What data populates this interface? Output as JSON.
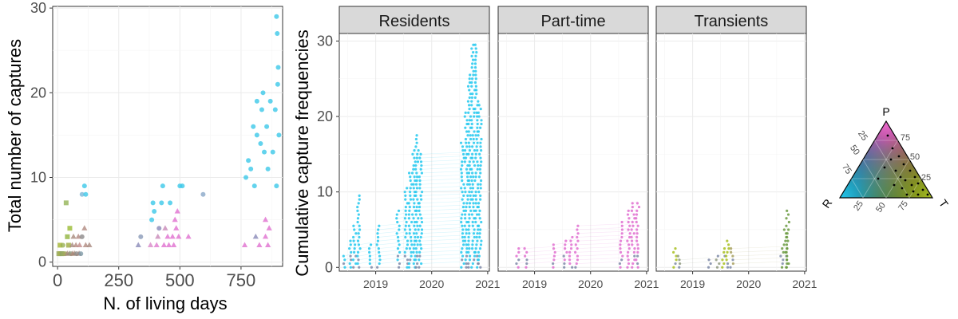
{
  "chart_data": [
    {
      "type": "scatter",
      "xlabel": "N. of living days",
      "ylabel": "Total number of captures",
      "xlim": [
        -20,
        920
      ],
      "ylim": [
        -0.5,
        30.2
      ],
      "xticks": [
        "0",
        "250",
        "500",
        "750"
      ],
      "xtick_values": [
        0,
        250,
        500,
        750
      ],
      "yticks": [
        "0",
        "10",
        "20",
        "30"
      ],
      "ytick_values": [
        0,
        10,
        20,
        30
      ],
      "grid": true,
      "points": [
        {
          "x": 5,
          "y": 1,
          "shape": "square",
          "color": "#98a85a"
        },
        {
          "x": 12,
          "y": 1,
          "shape": "square",
          "color": "#a5b04a"
        },
        {
          "x": 18,
          "y": 1,
          "shape": "square",
          "color": "#8fa567"
        },
        {
          "x": 25,
          "y": 1,
          "shape": "circle",
          "color": "#9aaa5f"
        },
        {
          "x": 32,
          "y": 1,
          "shape": "circle",
          "color": "#a4a85c"
        },
        {
          "x": 40,
          "y": 1,
          "shape": "triangle",
          "color": "#a58a7d"
        },
        {
          "x": 48,
          "y": 1,
          "shape": "triangle",
          "color": "#9c8a78"
        },
        {
          "x": 55,
          "y": 1,
          "shape": "circle",
          "color": "#8f9a80"
        },
        {
          "x": 62,
          "y": 1,
          "shape": "triangle",
          "color": "#b08678"
        },
        {
          "x": 70,
          "y": 1,
          "shape": "triangle",
          "color": "#a08674"
        },
        {
          "x": 78,
          "y": 1,
          "shape": "circle",
          "color": "#8f8c8a"
        },
        {
          "x": 88,
          "y": 1,
          "shape": "triangle",
          "color": "#a0837a"
        },
        {
          "x": 95,
          "y": 1,
          "shape": "circle",
          "color": "#7e9aa8"
        },
        {
          "x": 10,
          "y": 2,
          "shape": "square",
          "color": "#a8b83c"
        },
        {
          "x": 22,
          "y": 2,
          "shape": "circle",
          "color": "#9ab255"
        },
        {
          "x": 45,
          "y": 2,
          "shape": "square",
          "color": "#a5b04a"
        },
        {
          "x": 60,
          "y": 2,
          "shape": "triangle",
          "color": "#a58a7d"
        },
        {
          "x": 75,
          "y": 2,
          "shape": "triangle",
          "color": "#b48a80"
        },
        {
          "x": 90,
          "y": 2,
          "shape": "triangle",
          "color": "#c08a88"
        },
        {
          "x": 115,
          "y": 2,
          "shape": "triangle",
          "color": "#b08a80"
        },
        {
          "x": 130,
          "y": 2,
          "shape": "triangle",
          "color": "#a8887e"
        },
        {
          "x": 40,
          "y": 3,
          "shape": "square",
          "color": "#98b84a"
        },
        {
          "x": 65,
          "y": 3,
          "shape": "triangle",
          "color": "#a88a7c"
        },
        {
          "x": 85,
          "y": 3,
          "shape": "triangle",
          "color": "#b08880"
        },
        {
          "x": 100,
          "y": 3,
          "shape": "circle",
          "color": "#8c8a8a"
        },
        {
          "x": 50,
          "y": 4,
          "shape": "square",
          "color": "#a0c040"
        },
        {
          "x": 110,
          "y": 4,
          "shape": "triangle",
          "color": "#b08a80"
        },
        {
          "x": 35,
          "y": 7,
          "shape": "square",
          "color": "#9ab860"
        },
        {
          "x": 100,
          "y": 8,
          "shape": "circle",
          "color": "#7ab8d8"
        },
        {
          "x": 115,
          "y": 8,
          "shape": "circle",
          "color": "#3cc8e8"
        },
        {
          "x": 110,
          "y": 9,
          "shape": "circle",
          "color": "#3cc8e8"
        },
        {
          "x": 330,
          "y": 2,
          "shape": "triangle",
          "color": "#8a8ab8"
        },
        {
          "x": 340,
          "y": 3,
          "shape": "circle",
          "color": "#8a9ab8"
        },
        {
          "x": 380,
          "y": 2,
          "shape": "triangle",
          "color": "#d888c8"
        },
        {
          "x": 385,
          "y": 5,
          "shape": "circle",
          "color": "#3cc8e8"
        },
        {
          "x": 395,
          "y": 6,
          "shape": "circle",
          "color": "#3cc8e8"
        },
        {
          "x": 390,
          "y": 7,
          "shape": "circle",
          "color": "#3cc8e8"
        },
        {
          "x": 405,
          "y": 2,
          "shape": "triangle",
          "color": "#e07ad0"
        },
        {
          "x": 410,
          "y": 3,
          "shape": "triangle",
          "color": "#c888b8"
        },
        {
          "x": 415,
          "y": 4,
          "shape": "circle",
          "color": "#8a8ab8"
        },
        {
          "x": 425,
          "y": 7,
          "shape": "circle",
          "color": "#3cc8e8"
        },
        {
          "x": 430,
          "y": 9,
          "shape": "circle",
          "color": "#3cc8e8"
        },
        {
          "x": 435,
          "y": 2,
          "shape": "triangle",
          "color": "#e070d0"
        },
        {
          "x": 440,
          "y": 4,
          "shape": "triangle",
          "color": "#c888b8"
        },
        {
          "x": 450,
          "y": 3,
          "shape": "triangle",
          "color": "#e070d0"
        },
        {
          "x": 455,
          "y": 2,
          "shape": "triangle",
          "color": "#e070d0"
        },
        {
          "x": 460,
          "y": 7,
          "shape": "circle",
          "color": "#3cc8e8"
        },
        {
          "x": 470,
          "y": 3,
          "shape": "triangle",
          "color": "#e070d0"
        },
        {
          "x": 475,
          "y": 2,
          "shape": "triangle",
          "color": "#e070d0"
        },
        {
          "x": 480,
          "y": 5,
          "shape": "triangle",
          "color": "#e070d0"
        },
        {
          "x": 485,
          "y": 4,
          "shape": "triangle",
          "color": "#e070d0"
        },
        {
          "x": 490,
          "y": 6,
          "shape": "triangle",
          "color": "#e070d0"
        },
        {
          "x": 495,
          "y": 3,
          "shape": "triangle",
          "color": "#e070d0"
        },
        {
          "x": 500,
          "y": 9,
          "shape": "circle",
          "color": "#3cc8e8"
        },
        {
          "x": 510,
          "y": 9,
          "shape": "circle",
          "color": "#3cc8e8"
        },
        {
          "x": 535,
          "y": 3,
          "shape": "triangle",
          "color": "#e070d0"
        },
        {
          "x": 595,
          "y": 8,
          "shape": "circle",
          "color": "#8aa8c8"
        },
        {
          "x": 765,
          "y": 2,
          "shape": "triangle",
          "color": "#e070d0"
        },
        {
          "x": 770,
          "y": 10,
          "shape": "circle",
          "color": "#3cc8e8"
        },
        {
          "x": 780,
          "y": 12,
          "shape": "circle",
          "color": "#3cc8e8"
        },
        {
          "x": 790,
          "y": 11,
          "shape": "circle",
          "color": "#3cc8e8"
        },
        {
          "x": 800,
          "y": 16,
          "shape": "circle",
          "color": "#3cc8e8"
        },
        {
          "x": 805,
          "y": 9,
          "shape": "circle",
          "color": "#3cc8e8"
        },
        {
          "x": 810,
          "y": 3,
          "shape": "triangle",
          "color": "#8a8ab8"
        },
        {
          "x": 815,
          "y": 19,
          "shape": "circle",
          "color": "#3cc8e8"
        },
        {
          "x": 815,
          "y": 15,
          "shape": "circle",
          "color": "#3cc8e8"
        },
        {
          "x": 825,
          "y": 2,
          "shape": "triangle",
          "color": "#e070d0"
        },
        {
          "x": 830,
          "y": 14,
          "shape": "circle",
          "color": "#3cc8e8"
        },
        {
          "x": 835,
          "y": 18,
          "shape": "circle",
          "color": "#3cc8e8"
        },
        {
          "x": 840,
          "y": 20,
          "shape": "circle",
          "color": "#3cc8e8"
        },
        {
          "x": 845,
          "y": 13,
          "shape": "circle",
          "color": "#3cc8e8"
        },
        {
          "x": 850,
          "y": 3,
          "shape": "triangle",
          "color": "#e070d0"
        },
        {
          "x": 850,
          "y": 5,
          "shape": "triangle",
          "color": "#e070d0"
        },
        {
          "x": 855,
          "y": 16,
          "shape": "circle",
          "color": "#3cc8e8"
        },
        {
          "x": 860,
          "y": 2,
          "shape": "triangle",
          "color": "#e070d0"
        },
        {
          "x": 860,
          "y": 11,
          "shape": "circle",
          "color": "#3cc8e8"
        },
        {
          "x": 865,
          "y": 4,
          "shape": "triangle",
          "color": "#e070d0"
        },
        {
          "x": 870,
          "y": 19,
          "shape": "circle",
          "color": "#3cc8e8"
        },
        {
          "x": 880,
          "y": 13,
          "shape": "circle",
          "color": "#3cc8e8"
        },
        {
          "x": 890,
          "y": 18,
          "shape": "circle",
          "color": "#3cc8e8"
        },
        {
          "x": 895,
          "y": 29,
          "shape": "circle",
          "color": "#3cc8e8"
        },
        {
          "x": 898,
          "y": 27,
          "shape": "circle",
          "color": "#3cc8e8"
        },
        {
          "x": 900,
          "y": 21,
          "shape": "circle",
          "color": "#3cc8e8"
        },
        {
          "x": 902,
          "y": 23,
          "shape": "circle",
          "color": "#3cc8e8"
        },
        {
          "x": 905,
          "y": 15,
          "shape": "circle",
          "color": "#3cc8e8"
        },
        {
          "x": 895,
          "y": 9,
          "shape": "circle",
          "color": "#3cc8e8"
        }
      ]
    },
    {
      "type": "line",
      "ylabel": "Cumulative capture frequencies",
      "facets": [
        "Residents",
        "Part-time",
        "Transients"
      ],
      "xlim": [
        2018.35,
        2021.03
      ],
      "ylim": [
        -0.5,
        31
      ],
      "xticks": [
        "2019",
        "2020",
        "2021"
      ],
      "xtick_values": [
        2019,
        2020,
        2021
      ],
      "yticks": [
        "0",
        "10",
        "20",
        "30"
      ],
      "ytick_values": [
        0,
        10,
        20,
        30
      ],
      "grid": true,
      "capture_sessions": [
        {
          "facet": "Residents",
          "x": 2018.45,
          "max": 1.6,
          "color": "#22c8ee"
        },
        {
          "facet": "Residents",
          "x": 2018.55,
          "max": 3.5,
          "color": "#22c8ee"
        },
        {
          "facet": "Residents",
          "x": 2018.62,
          "max": 5.5,
          "color": "#22c8ee"
        },
        {
          "facet": "Residents",
          "x": 2018.7,
          "max": 9.5,
          "color": "#22c8ee"
        },
        {
          "facet": "Residents",
          "x": 2018.9,
          "max": 3.0,
          "color": "#22c8ee"
        },
        {
          "facet": "Residents",
          "x": 2019.05,
          "max": 5.5,
          "color": "#22c8ee"
        },
        {
          "facet": "Residents",
          "x": 2019.4,
          "max": 7.5,
          "color": "#22c8ee"
        },
        {
          "facet": "Residents",
          "x": 2019.55,
          "max": 10.5,
          "color": "#22c8ee"
        },
        {
          "facet": "Residents",
          "x": 2019.62,
          "max": 12.5,
          "color": "#22c8ee"
        },
        {
          "facet": "Residents",
          "x": 2019.68,
          "max": 15.5,
          "color": "#22c8ee"
        },
        {
          "facet": "Residents",
          "x": 2019.74,
          "max": 17.5,
          "color": "#22c8ee"
        },
        {
          "facet": "Residents",
          "x": 2019.8,
          "max": 15.0,
          "color": "#22c8ee"
        },
        {
          "facet": "Residents",
          "x": 2020.55,
          "max": 16.5,
          "color": "#22c8ee"
        },
        {
          "facet": "Residents",
          "x": 2020.62,
          "max": 20.5,
          "color": "#22c8ee"
        },
        {
          "facet": "Residents",
          "x": 2020.68,
          "max": 25.5,
          "color": "#22c8ee"
        },
        {
          "facet": "Residents",
          "x": 2020.74,
          "max": 29.5,
          "color": "#22c8ee"
        },
        {
          "facet": "Residents",
          "x": 2020.8,
          "max": 29.5,
          "color": "#22c8ee"
        },
        {
          "facet": "Residents",
          "x": 2020.86,
          "max": 21.5,
          "color": "#22c8ee"
        },
        {
          "facet": "Part-time",
          "x": 2018.7,
          "max": 2.5,
          "color": "#e070d0"
        },
        {
          "facet": "Part-time",
          "x": 2018.85,
          "max": 2.5,
          "color": "#e070d0"
        },
        {
          "facet": "Part-time",
          "x": 2019.35,
          "max": 3.0,
          "color": "#e070d0"
        },
        {
          "facet": "Part-time",
          "x": 2019.55,
          "max": 3.5,
          "color": "#e070d0"
        },
        {
          "facet": "Part-time",
          "x": 2019.65,
          "max": 4.0,
          "color": "#e070d0"
        },
        {
          "facet": "Part-time",
          "x": 2019.75,
          "max": 5.5,
          "color": "#e070d0"
        },
        {
          "facet": "Part-time",
          "x": 2020.55,
          "max": 6.0,
          "color": "#e070d0"
        },
        {
          "facet": "Part-time",
          "x": 2020.68,
          "max": 7.5,
          "color": "#e070d0"
        },
        {
          "facet": "Part-time",
          "x": 2020.76,
          "max": 8.5,
          "color": "#e070d0"
        },
        {
          "facet": "Part-time",
          "x": 2020.84,
          "max": 8.5,
          "color": "#e070d0"
        },
        {
          "facet": "Transients",
          "x": 2018.68,
          "max": 2.5,
          "color": "#a8c020"
        },
        {
          "facet": "Transients",
          "x": 2018.75,
          "max": 1.5,
          "color": "#8f9a80"
        },
        {
          "facet": "Transients",
          "x": 2019.3,
          "max": 1.0,
          "color": "#a88a7c"
        },
        {
          "facet": "Transients",
          "x": 2019.45,
          "max": 1.5,
          "color": "#8f9a80"
        },
        {
          "facet": "Transients",
          "x": 2019.55,
          "max": 2.5,
          "color": "#a8c020"
        },
        {
          "facet": "Transients",
          "x": 2019.62,
          "max": 3.5,
          "color": "#a8c020"
        },
        {
          "facet": "Transients",
          "x": 2019.7,
          "max": 2.5,
          "color": "#a8a060"
        },
        {
          "facet": "Transients",
          "x": 2020.6,
          "max": 2.5,
          "color": "#6a9a40"
        },
        {
          "facet": "Transients",
          "x": 2020.66,
          "max": 5.0,
          "color": "#6a9a40"
        },
        {
          "facet": "Transients",
          "x": 2020.7,
          "max": 7.8,
          "color": "#6a9a40"
        }
      ]
    },
    {
      "type": "ternary_legend",
      "vertices": [
        "P",
        "R",
        "T"
      ],
      "ticks": [
        "25",
        "50",
        "75"
      ],
      "colors": {
        "P": "#f06ad0",
        "R": "#22c8ee",
        "T": "#a8c020",
        "center": "#1a1a1a"
      }
    }
  ]
}
